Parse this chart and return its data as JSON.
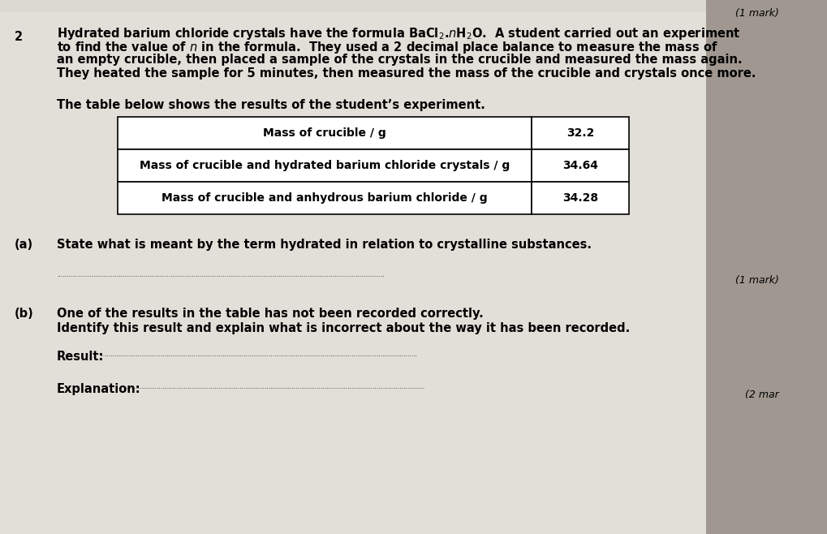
{
  "bg_left": "#e8e6e2",
  "bg_right": "#b8b0a8",
  "question_number": "2",
  "top_right_text": "(1 mark)",
  "intro_lines": [
    "Hydrated barium chloride crystals have the formula BaCl$_2$.$n$H$_2$O.  A student carried out an experiment",
    "to find the value of $n$ in the formula.  They used a 2 decimal place balance to measure the mass of",
    "an empty crucible, then placed a sample of the crystals in the crucible and measured the mass again.",
    "They heated the sample for 5 minutes, then measured the mass of the crucible and crystals once more."
  ],
  "table_intro": "The table below shows the results of the student’s experiment.",
  "table_rows": [
    [
      "Mass of crucible / g",
      "32.2"
    ],
    [
      "Mass of crucible and hydrated barium chloride crystals / g",
      "34.64"
    ],
    [
      "Mass of crucible and anhydrous barium chloride / g",
      "34.28"
    ]
  ],
  "part_a_label": "(a)",
  "part_a_text": "State what is meant by the term hydrated in relation to crystalline substances.",
  "part_a_mark": "(1 mark)",
  "part_b_label": "(b)",
  "part_b_line1": "One of the results in the table has not been recorded correctly.",
  "part_b_line2": "Identify this result and explain what is incorrect about the way it has been recorded.",
  "result_label": "Result:",
  "explanation_label": "Explanation:",
  "part_b_mark": "(2 mar"
}
